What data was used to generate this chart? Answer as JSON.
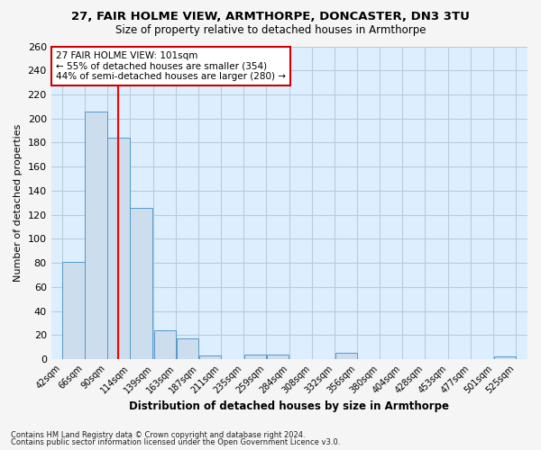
{
  "title1": "27, FAIR HOLME VIEW, ARMTHORPE, DONCASTER, DN3 3TU",
  "title2": "Size of property relative to detached houses in Armthorpe",
  "xlabel": "Distribution of detached houses by size in Armthorpe",
  "ylabel": "Number of detached properties",
  "bins": [
    42,
    66,
    90,
    114,
    139,
    163,
    187,
    211,
    235,
    259,
    284,
    308,
    332,
    356,
    380,
    404,
    428,
    453,
    477,
    501,
    525
  ],
  "counts": [
    81,
    206,
    184,
    126,
    24,
    17,
    3,
    0,
    4,
    4,
    0,
    0,
    5,
    0,
    0,
    0,
    0,
    0,
    0,
    2,
    0
  ],
  "bin_labels": [
    "42sqm",
    "66sqm",
    "90sqm",
    "114sqm",
    "139sqm",
    "163sqm",
    "187sqm",
    "211sqm",
    "235sqm",
    "259sqm",
    "284sqm",
    "308sqm",
    "332sqm",
    "356sqm",
    "380sqm",
    "404sqm",
    "428sqm",
    "453sqm",
    "477sqm",
    "501sqm",
    "525sqm"
  ],
  "bar_color": "#ccdded",
  "bar_edge_color": "#5599cc",
  "grid_color": "#b8ccdd",
  "bg_color": "#ddeeff",
  "fig_color": "#f5f5f5",
  "red_line_x": 101,
  "annotation_text": "27 FAIR HOLME VIEW: 101sqm\n← 55% of detached houses are smaller (354)\n44% of semi-detached houses are larger (280) →",
  "annotation_box_color": "#ffffff",
  "annotation_box_edge": "#cc0000",
  "footnote1": "Contains HM Land Registry data © Crown copyright and database right 2024.",
  "footnote2": "Contains public sector information licensed under the Open Government Licence v3.0.",
  "ylim": [
    0,
    260
  ],
  "yticks": [
    0,
    20,
    40,
    60,
    80,
    100,
    120,
    140,
    160,
    180,
    200,
    220,
    240,
    260
  ]
}
